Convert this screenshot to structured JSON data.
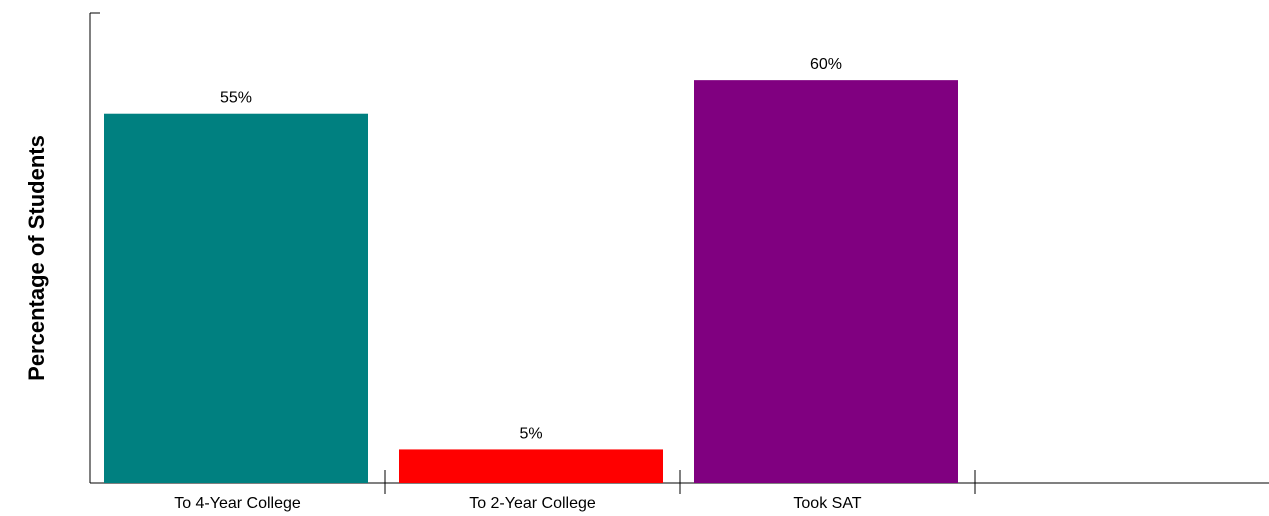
{
  "chart_data": {
    "type": "bar",
    "title": "",
    "xlabel": "",
    "ylabel": "Percentage of Students",
    "categories": [
      "To 4-Year College",
      "To 2-Year College",
      "Took SAT"
    ],
    "values": [
      55,
      5,
      60
    ],
    "data_labels": [
      "55%",
      "5%",
      "60%"
    ],
    "colors": [
      "#008080",
      "#ff0000",
      "#800080"
    ],
    "ylim": [
      0,
      70
    ],
    "grid": false,
    "legend": "none"
  }
}
